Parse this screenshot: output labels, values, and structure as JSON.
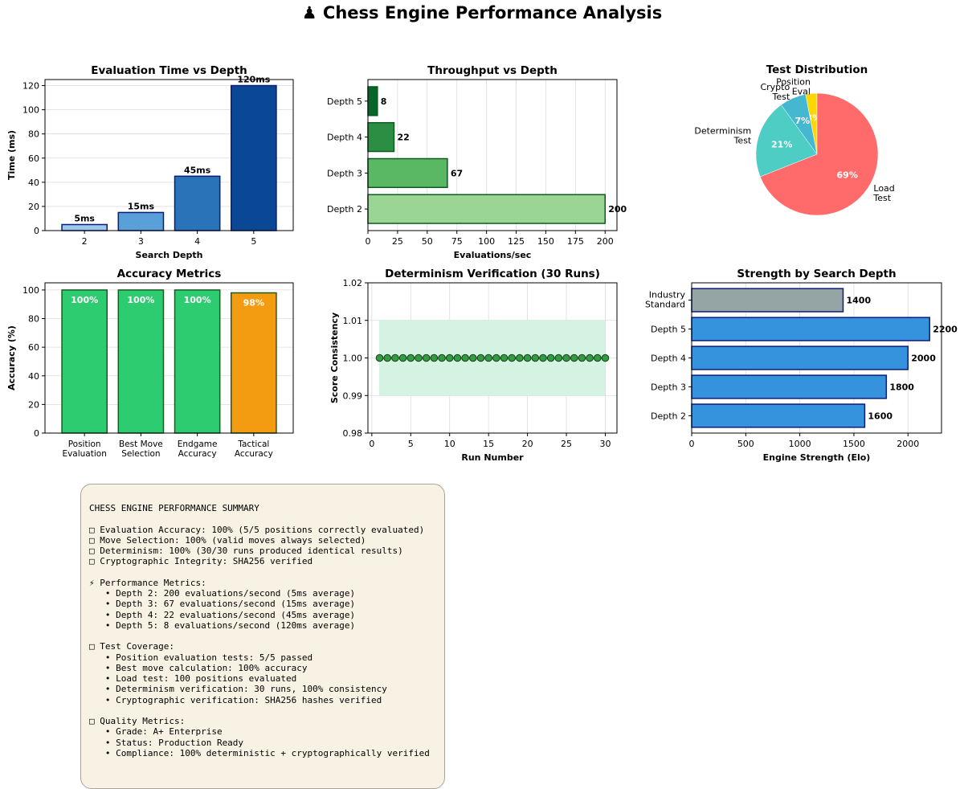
{
  "page_title": "♟ Chess Engine Performance Analysis",
  "chart_data": [
    {
      "id": "eval-time",
      "type": "bar",
      "title": "Evaluation Time vs Depth",
      "xlabel": "Search Depth",
      "ylabel": "Time (ms)",
      "categories": [
        "2",
        "3",
        "4",
        "5"
      ],
      "values": [
        5,
        15,
        45,
        120
      ],
      "data_labels": [
        "5ms",
        "15ms",
        "45ms",
        "120ms"
      ],
      "ylim": [
        0,
        125
      ],
      "yticks": [
        0,
        20,
        40,
        60,
        80,
        100,
        120
      ],
      "colors": [
        "#9ec8ee",
        "#5aa0d8",
        "#2a73b8",
        "#0a4896"
      ],
      "edge_color": "#0d1b7a",
      "grid": true
    },
    {
      "id": "throughput",
      "type": "bar",
      "orientation": "horizontal",
      "title": "Throughput vs Depth",
      "xlabel": "Evaluations/sec",
      "categories": [
        "Depth 2",
        "Depth 3",
        "Depth 4",
        "Depth 5"
      ],
      "values": [
        200,
        67,
        22,
        8
      ],
      "data_labels": [
        "200",
        "67",
        "22",
        "8"
      ],
      "xlim": [
        0,
        210
      ],
      "xticks": [
        0,
        25,
        50,
        75,
        100,
        125,
        150,
        175,
        200
      ],
      "colors": [
        "#9ad594",
        "#5ab864",
        "#2b8e43",
        "#07652a"
      ],
      "edge_color": "#0b5a1e",
      "grid": true
    },
    {
      "id": "test-distribution",
      "type": "pie",
      "title": "Test Distribution",
      "labels": [
        "Position Eval",
        "Crypto Test",
        "Determinism Test",
        "Load Test"
      ],
      "values": [
        3,
        7,
        21,
        69
      ],
      "percent_labels": [
        "3%",
        "7%",
        "21%",
        "69%"
      ],
      "colors": [
        "#ffd700",
        "#45b7d1",
        "#4ecdc4",
        "#ff6b6b"
      ]
    },
    {
      "id": "accuracy",
      "type": "bar",
      "title": "Accuracy Metrics",
      "ylabel": "Accuracy (%)",
      "categories": [
        "Position Evaluation",
        "Best Move Selection",
        "Endgame Accuracy",
        "Tactical Accuracy"
      ],
      "values": [
        100,
        100,
        100,
        98
      ],
      "data_labels": [
        "100%",
        "100%",
        "100%",
        "98%"
      ],
      "ylim": [
        0,
        105
      ],
      "yticks": [
        0,
        20,
        40,
        60,
        80,
        100
      ],
      "colors": [
        "#2ecc71",
        "#2ecc71",
        "#2ecc71",
        "#f39c12"
      ],
      "edge_color": "#1e5a1e",
      "grid": true
    },
    {
      "id": "determinism",
      "type": "scatter",
      "title": "Determinism Verification (30 Runs)",
      "xlabel": "Run Number",
      "ylabel": "Score Consistency",
      "x": [
        1,
        2,
        3,
        4,
        5,
        6,
        7,
        8,
        9,
        10,
        11,
        12,
        13,
        14,
        15,
        16,
        17,
        18,
        19,
        20,
        21,
        22,
        23,
        24,
        25,
        26,
        27,
        28,
        29,
        30
      ],
      "y": [
        1,
        1,
        1,
        1,
        1,
        1,
        1,
        1,
        1,
        1,
        1,
        1,
        1,
        1,
        1,
        1,
        1,
        1,
        1,
        1,
        1,
        1,
        1,
        1,
        1,
        1,
        1,
        1,
        1,
        1
      ],
      "band": [
        0.99,
        1.01
      ],
      "xlim": [
        -0.5,
        31.5
      ],
      "ylim": [
        0.98,
        1.02
      ],
      "xticks": [
        0,
        5,
        10,
        15,
        20,
        25,
        30
      ],
      "yticks": [
        0.98,
        0.99,
        1.0,
        1.01,
        1.02
      ],
      "ytick_labels": [
        "0.98",
        "0.99",
        "1.00",
        "1.01",
        "1.02"
      ],
      "point_color": "#2e9e40",
      "band_color": "#d5f3e3",
      "grid": true
    },
    {
      "id": "strength",
      "type": "bar",
      "orientation": "horizontal",
      "title": "Strength by Search Depth",
      "xlabel": "Engine Strength (Elo)",
      "categories": [
        "Depth 2",
        "Depth 3",
        "Depth 4",
        "Depth 5",
        "Industry Standard"
      ],
      "values": [
        1600,
        1800,
        2000,
        2200,
        1400
      ],
      "data_labels": [
        "1600",
        "1800",
        "2000",
        "2200",
        "1400"
      ],
      "xlim": [
        0,
        2310
      ],
      "xticks": [
        0,
        500,
        1000,
        1500,
        2000
      ],
      "colors": [
        "#3592dc",
        "#3592dc",
        "#3592dc",
        "#3592dc",
        "#95a5a6"
      ],
      "edge_color": "#0d1b7a",
      "grid": true
    }
  ],
  "summary": {
    "lines": [
      "CHESS ENGINE PERFORMANCE SUMMARY",
      "",
      "□ Evaluation Accuracy: 100% (5/5 positions correctly evaluated)",
      "□ Move Selection: 100% (valid moves always selected)",
      "□ Determinism: 100% (30/30 runs produced identical results)",
      "□ Cryptographic Integrity: SHA256 verified",
      "",
      "⚡ Performance Metrics:",
      "   • Depth 2: 200 evaluations/second (5ms average)",
      "   • Depth 3: 67 evaluations/second (15ms average)",
      "   • Depth 4: 22 evaluations/second (45ms average)",
      "   • Depth 5: 8 evaluations/second (120ms average)",
      "",
      "□ Test Coverage:",
      "   • Position evaluation tests: 5/5 passed",
      "   • Best move calculation: 100% accuracy",
      "   • Load test: 100 positions evaluated",
      "   • Determinism verification: 30 runs, 100% consistency",
      "   • Cryptographic verification: SHA256 hashes verified",
      "",
      "□ Quality Metrics:",
      "   • Grade: A+ Enterprise",
      "   • Status: Production Ready",
      "   • Compliance: 100% deterministic + cryptographically verified"
    ]
  }
}
